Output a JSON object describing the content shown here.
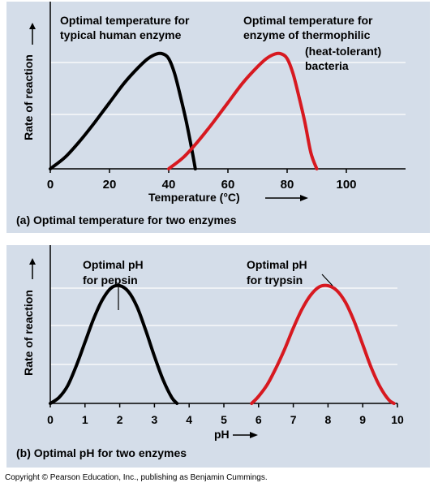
{
  "chart_data": [
    {
      "type": "line",
      "xlabel": "Temperature (°C)",
      "ylabel": "Rate of reaction",
      "caption": "(a) Optimal temperature for two enzymes",
      "xlim": [
        0,
        120
      ],
      "xticks": [
        0,
        20,
        40,
        60,
        80,
        100
      ],
      "ylim": [
        0,
        1
      ],
      "grid": "horizontal",
      "series": [
        {
          "label": "Optimal temperature for typical human enzyme",
          "color": "#000000",
          "x": [
            0,
            5,
            10,
            15,
            20,
            25,
            30,
            33,
            36,
            38,
            40,
            42,
            44,
            46,
            48,
            49
          ],
          "y": [
            0,
            0.1,
            0.24,
            0.4,
            0.57,
            0.74,
            0.88,
            0.95,
            0.99,
            0.99,
            0.95,
            0.82,
            0.62,
            0.4,
            0.14,
            0
          ]
        },
        {
          "label": "Optimal temperature for enzyme of thermophilic (heat-tolerant) bacteria",
          "color": "#d71920",
          "x": [
            40,
            45,
            50,
            55,
            60,
            65,
            70,
            73,
            76,
            78,
            80,
            82,
            84,
            86,
            88,
            90
          ],
          "y": [
            0,
            0.1,
            0.24,
            0.4,
            0.57,
            0.74,
            0.88,
            0.95,
            0.99,
            0.99,
            0.95,
            0.82,
            0.62,
            0.4,
            0.14,
            0
          ]
        }
      ]
    },
    {
      "type": "line",
      "xlabel": "pH",
      "ylabel": "Rate of reaction",
      "caption": "(b) Optimal pH for two enzymes",
      "xlim": [
        0,
        10
      ],
      "xticks": [
        0,
        1,
        2,
        3,
        4,
        5,
        6,
        7,
        8,
        9,
        10
      ],
      "ylim": [
        0,
        1
      ],
      "grid": "horizontal",
      "series": [
        {
          "label": "Optimal pH for pepsin",
          "color": "#000000",
          "x": [
            0,
            0.25,
            0.5,
            0.75,
            1.0,
            1.25,
            1.5,
            1.75,
            2.0,
            2.25,
            2.5,
            2.75,
            3.0,
            3.25,
            3.5,
            3.65
          ],
          "y": [
            0,
            0.05,
            0.15,
            0.32,
            0.52,
            0.72,
            0.88,
            0.98,
            1.0,
            0.95,
            0.82,
            0.62,
            0.4,
            0.2,
            0.05,
            0
          ]
        },
        {
          "label": "Optimal pH for trypsin",
          "color": "#d71920",
          "x": [
            5.8,
            6.0,
            6.25,
            6.5,
            6.75,
            7.0,
            7.25,
            7.5,
            7.75,
            8.0,
            8.25,
            8.5,
            8.75,
            9.0,
            9.25,
            9.5,
            9.75,
            9.9
          ],
          "y": [
            0,
            0.06,
            0.16,
            0.3,
            0.46,
            0.64,
            0.8,
            0.92,
            0.99,
            1.0,
            0.96,
            0.86,
            0.7,
            0.5,
            0.3,
            0.14,
            0.03,
            0
          ]
        }
      ]
    }
  ],
  "annotations_a": {
    "human_line1": "Optimal temperature for",
    "human_line2": "typical human enzyme",
    "thermo_line1": "Optimal temperature for",
    "thermo_line2": "enzyme of thermophilic",
    "thermo_line3": "(heat-tolerant)",
    "thermo_line4": "bacteria"
  },
  "annotations_b": {
    "pepsin_line1": "Optimal pH",
    "pepsin_line2": "for pepsin",
    "trypsin_line1": "Optimal pH",
    "trypsin_line2": "for trypsin"
  },
  "colors": {
    "panel_bg": "#d4dde9",
    "human": "#000000",
    "thermo": "#d71920"
  },
  "copyright": "Copyright © Pearson Education, Inc., publishing as Benjamin Cummings."
}
